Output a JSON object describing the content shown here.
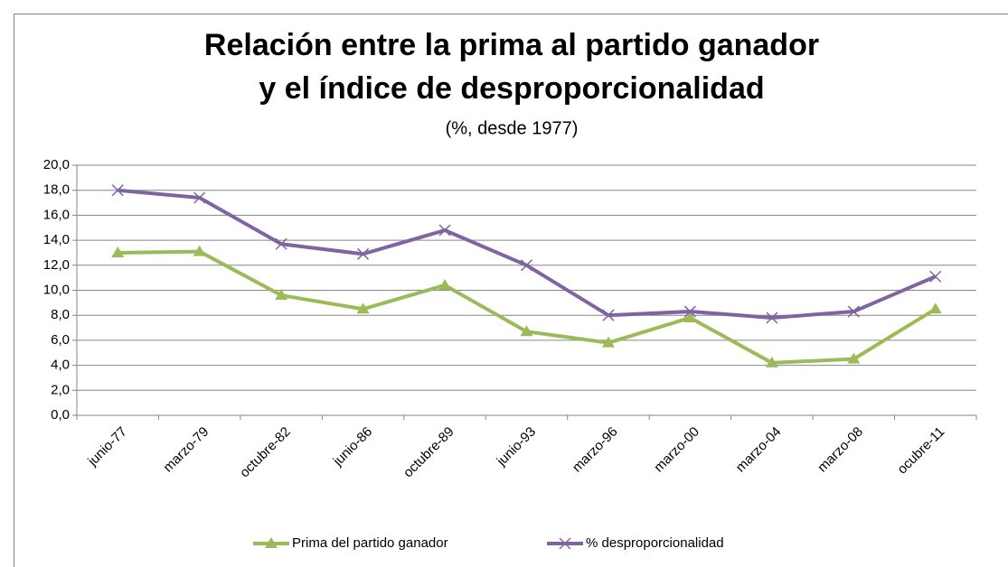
{
  "chart_data": {
    "type": "line",
    "title": [
      "Relación entre la prima al partido ganador",
      "y el índice de desproporcionalidad"
    ],
    "subtitle": "(%, desde 1977)",
    "categories": [
      "junio-77",
      "marzo-79",
      "octubre-82",
      "junio-86",
      "octubre-89",
      "junio-93",
      "marzo-96",
      "marzo-00",
      "marzo-04",
      "marzo-08",
      "ocubre-11"
    ],
    "series": [
      {
        "name": "Prima del partido ganador",
        "color": "#9bbb59",
        "marker": "triangle",
        "values": [
          13.0,
          13.1,
          9.6,
          8.5,
          10.4,
          6.7,
          5.8,
          7.8,
          4.2,
          4.5,
          8.5
        ]
      },
      {
        "name": "% desproporcionalidad",
        "color": "#8064a2",
        "marker": "x",
        "values": [
          18.0,
          17.4,
          13.7,
          12.9,
          14.8,
          12.0,
          8.0,
          8.3,
          7.8,
          8.3,
          11.1
        ]
      }
    ],
    "ylim": [
      0,
      20
    ],
    "yticks": [
      {
        "value": 0,
        "label": "0,0"
      },
      {
        "value": 2,
        "label": "2,0"
      },
      {
        "value": 4,
        "label": "4,0"
      },
      {
        "value": 6,
        "label": "6,0"
      },
      {
        "value": 8,
        "label": "8,0"
      },
      {
        "value": 10,
        "label": "10,0"
      },
      {
        "value": 12,
        "label": "12,0"
      },
      {
        "value": 14,
        "label": "14,0"
      },
      {
        "value": 16,
        "label": "16,0"
      },
      {
        "value": 18,
        "label": "18,0"
      },
      {
        "value": 20,
        "label": "20,0"
      }
    ],
    "grid": true,
    "legend": "bottom"
  }
}
